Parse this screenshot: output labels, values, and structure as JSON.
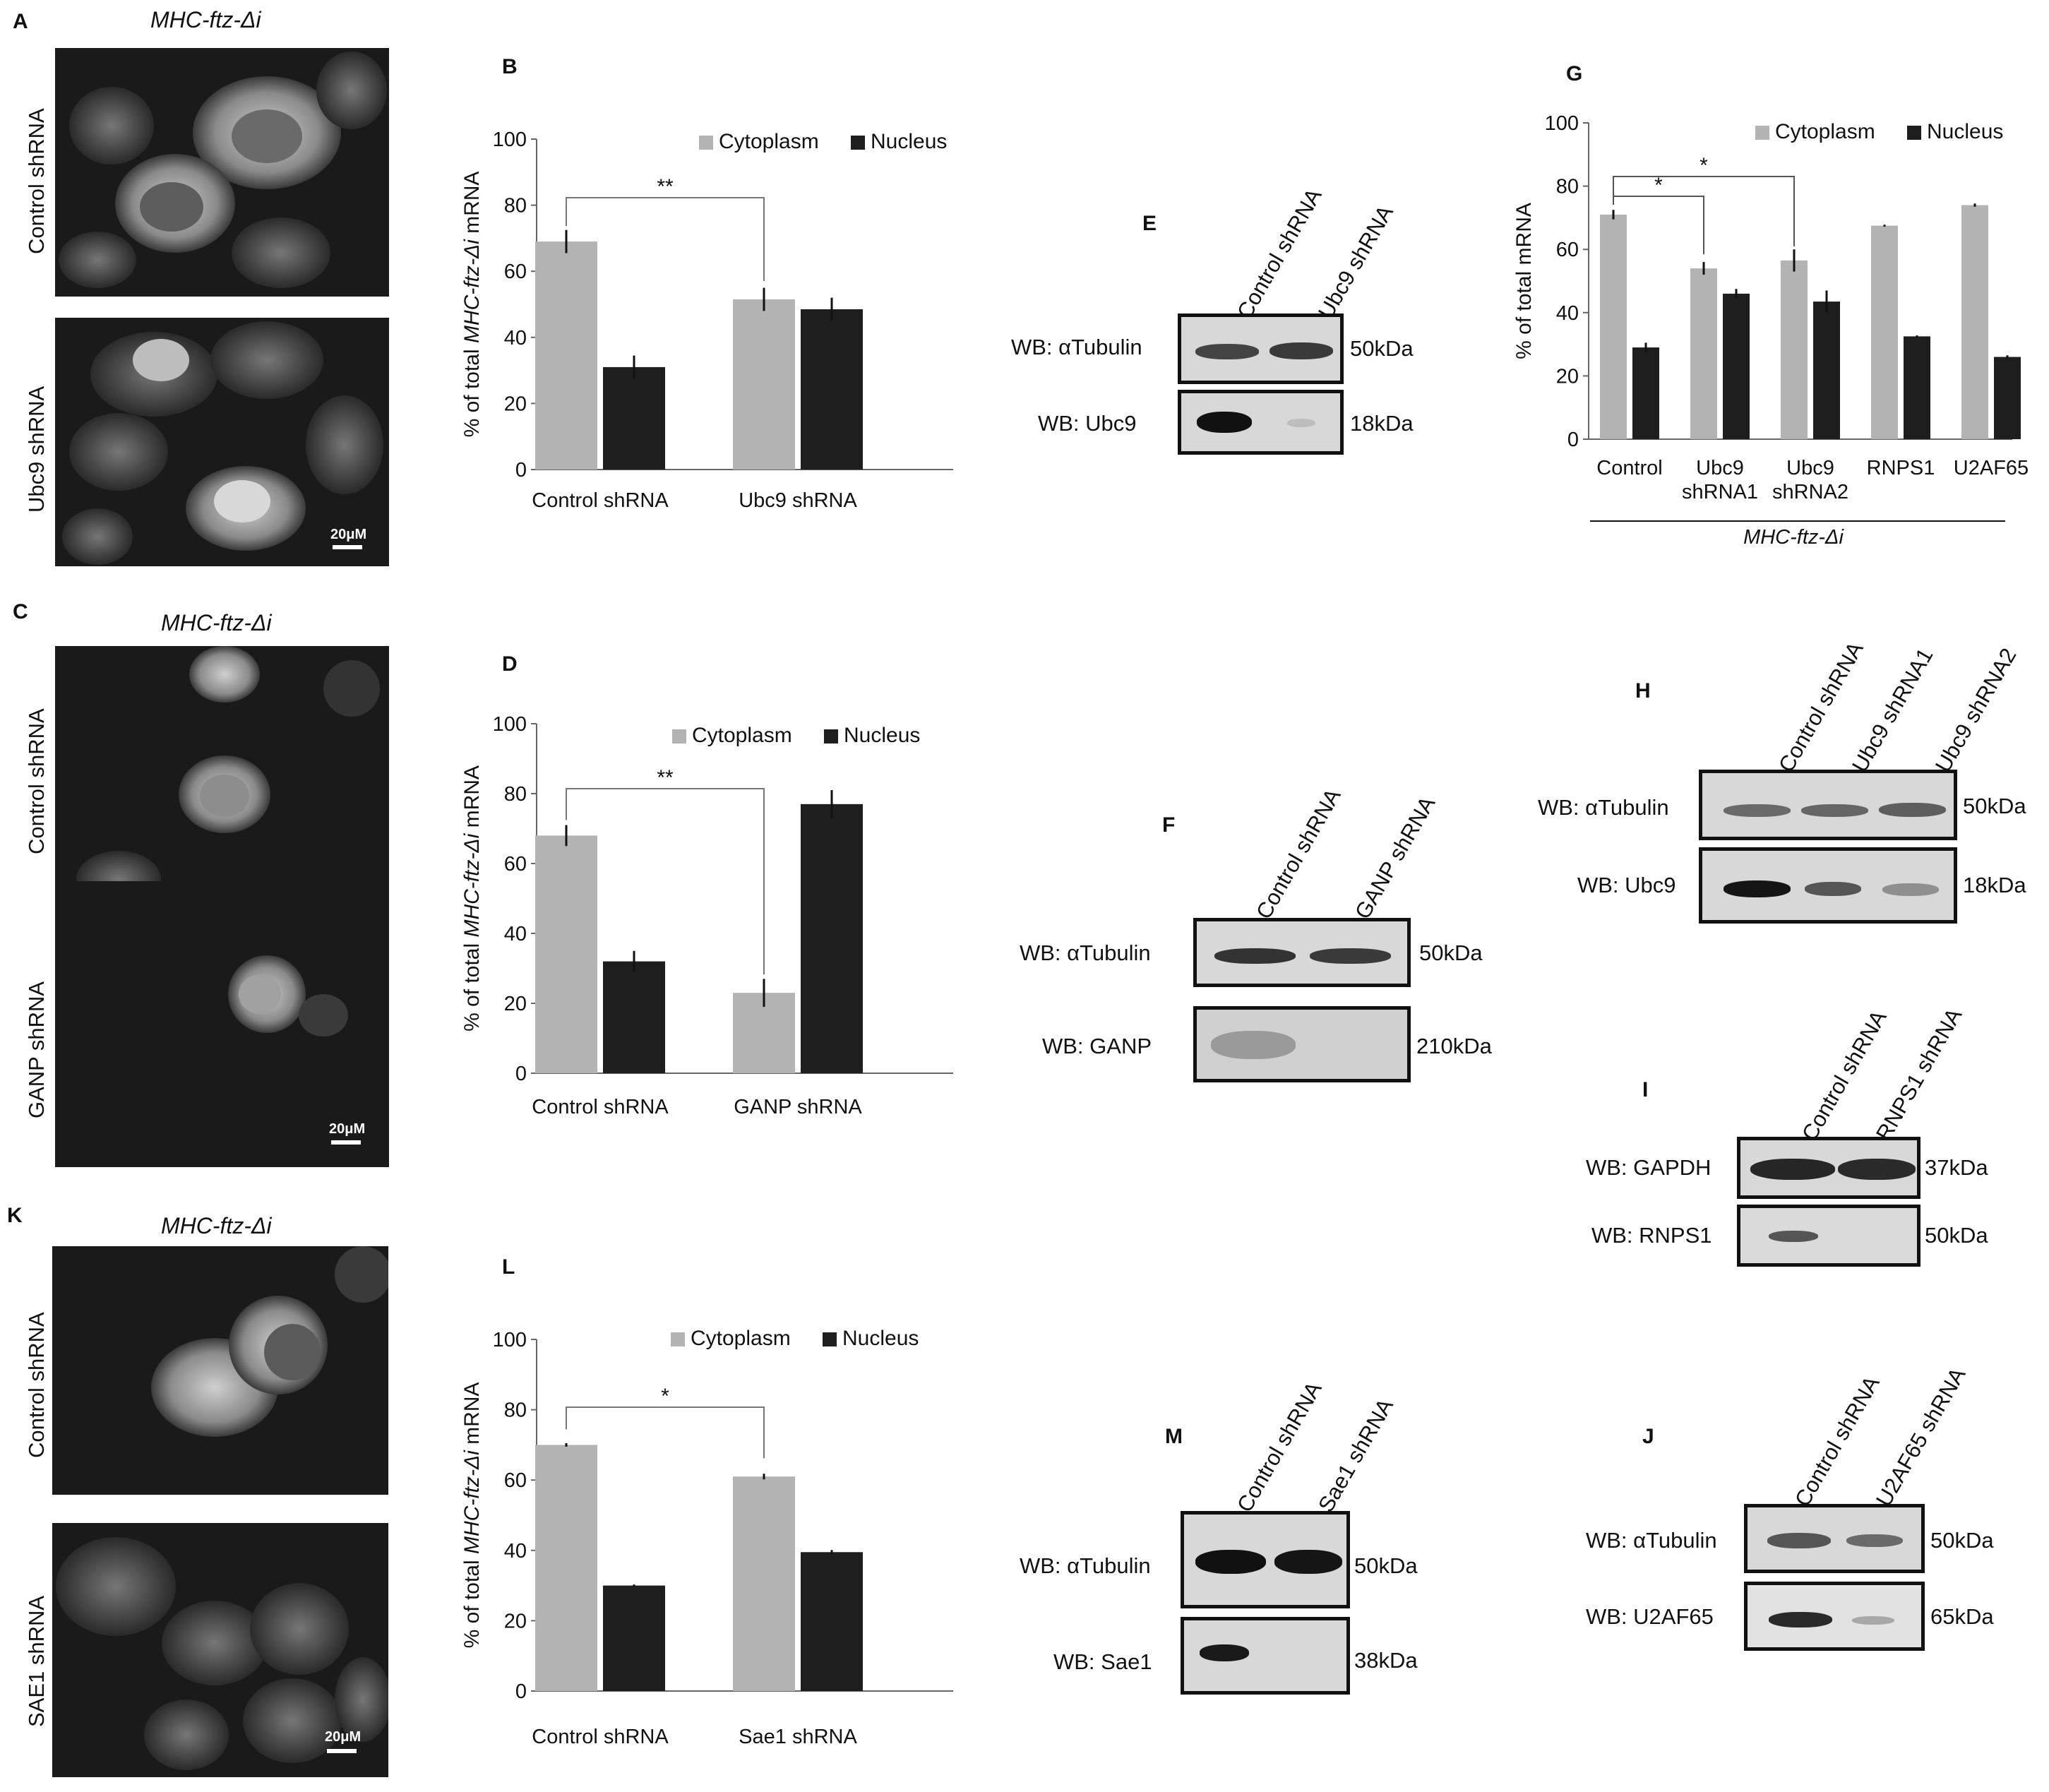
{
  "panels": {
    "A": {
      "letter": "A",
      "title": "MHC-ftz-Δi",
      "top_label": "Control shRNA",
      "bottom_label": "Ubc9 shRNA",
      "scale": "20μM"
    },
    "C": {
      "letter": "C",
      "title": "MHC-ftz-Δi",
      "top_label": "Control shRNA",
      "bottom_label": "GANP shRNA",
      "scale": "20μM"
    },
    "K": {
      "letter": "K",
      "title": "MHC-ftz-Δi",
      "top_label": "Control shRNA",
      "bottom_label": "SAE1 shRNA",
      "scale": "20μM"
    },
    "E": {
      "letter": "E",
      "lanes": [
        "Control shRNA",
        "Ubc9 shRNA"
      ],
      "rows": [
        {
          "label": "WB: αTubulin",
          "kda": "50kDa"
        },
        {
          "label": "WB: Ubc9",
          "kda": "18kDa"
        }
      ]
    },
    "F": {
      "letter": "F",
      "lanes": [
        "Control shRNA",
        "GANP shRNA"
      ],
      "rows": [
        {
          "label": "WB: αTubulin",
          "kda": "50kDa"
        },
        {
          "label": "WB: GANP",
          "kda": "210kDa"
        }
      ]
    },
    "M": {
      "letter": "M",
      "lanes": [
        "Control shRNA",
        "Sae1 shRNA"
      ],
      "rows": [
        {
          "label": "WB: αTubulin",
          "kda": "50kDa"
        },
        {
          "label": "WB: Sae1",
          "kda": "38kDa"
        }
      ]
    },
    "H": {
      "letter": "H",
      "lanes": [
        "Control shRNA",
        "Ubc9 shRNA1",
        "Ubc9 shRNA2"
      ],
      "rows": [
        {
          "label": "WB: αTubulin",
          "kda": "50kDa"
        },
        {
          "label": "WB: Ubc9",
          "kda": "18kDa"
        }
      ]
    },
    "I": {
      "letter": "I",
      "lanes": [
        "Control shRNA",
        "RNPS1 shRNA"
      ],
      "rows": [
        {
          "label": "WB: GAPDH",
          "kda": "37kDa"
        },
        {
          "label": "WB: RNPS1",
          "kda": "50kDa"
        }
      ]
    },
    "J": {
      "letter": "J",
      "lanes": [
        "Control shRNA",
        "U2AF65 shRNA"
      ],
      "rows": [
        {
          "label": "WB: αTubulin",
          "kda": "50kDa"
        },
        {
          "label": "WB: U2AF65",
          "kda": "65kDa"
        }
      ]
    }
  },
  "colors": {
    "cytoplasm": "#b3b3b3",
    "nucleus": "#1e1e1e",
    "axis": "#666666"
  },
  "chart_data": [
    {
      "panel": "B",
      "type": "bar",
      "categories": [
        "Control shRNA",
        "Ubc9 shRNA"
      ],
      "series": [
        {
          "name": "Cytoplasm",
          "values": [
            69,
            51.5
          ],
          "errors": [
            3.5,
            3.5
          ]
        },
        {
          "name": "Nucleus",
          "values": [
            31,
            48.5
          ],
          "errors": [
            3.5,
            3.5
          ]
        }
      ],
      "ylabel_pre": "% of total ",
      "ylabel_italic": "MHC-ftz-Δi",
      "ylabel_post": " mRNA",
      "ylim": [
        0,
        100
      ],
      "yticks": [
        0,
        20,
        40,
        60,
        80,
        100
      ],
      "significance": [
        {
          "from": 0,
          "to": 1,
          "label": "**"
        }
      ],
      "legend": "top-right"
    },
    {
      "panel": "D",
      "type": "bar",
      "categories": [
        "Control shRNA",
        "GANP shRNA"
      ],
      "series": [
        {
          "name": "Cytoplasm",
          "values": [
            68,
            23
          ],
          "errors": [
            3,
            4
          ]
        },
        {
          "name": "Nucleus",
          "values": [
            32,
            77
          ],
          "errors": [
            3,
            4
          ]
        }
      ],
      "ylabel_pre": "% of total ",
      "ylabel_italic": "MHC-ftz-Δi",
      "ylabel_post": " mRNA",
      "ylim": [
        0,
        100
      ],
      "yticks": [
        0,
        20,
        40,
        60,
        80,
        100
      ],
      "significance": [
        {
          "from": 0,
          "to": 1,
          "label": "**"
        }
      ],
      "legend": "top-right"
    },
    {
      "panel": "L",
      "type": "bar",
      "categories": [
        "Control shRNA",
        "Sae1 shRNA"
      ],
      "series": [
        {
          "name": "Cytoplasm",
          "values": [
            70,
            61
          ],
          "errors": [
            0.5,
            0.8
          ]
        },
        {
          "name": "Nucleus",
          "values": [
            30,
            39.5
          ],
          "errors": [
            0.3,
            0.6
          ]
        }
      ],
      "ylabel_pre": "% of total ",
      "ylabel_italic": "MHC-ftz-Δi",
      "ylabel_post": " mRNA",
      "ylim": [
        0,
        100
      ],
      "yticks": [
        0,
        20,
        40,
        60,
        80,
        100
      ],
      "significance": [
        {
          "from": 0,
          "to": 1,
          "label": "*"
        }
      ],
      "legend": "top-right"
    },
    {
      "panel": "G",
      "type": "bar",
      "categories": [
        "Control",
        "Ubc9\nshRNA1",
        "Ubc9\nshRNA2",
        "RNPS1",
        "U2AF65"
      ],
      "series": [
        {
          "name": "Cytoplasm",
          "values": [
            71,
            54,
            56.5,
            67.5,
            74
          ],
          "errors": [
            1.5,
            2,
            3.5,
            0.3,
            0.5
          ]
        },
        {
          "name": "Nucleus",
          "values": [
            29,
            46,
            43.5,
            32.5,
            26
          ],
          "errors": [
            1.5,
            1.5,
            3.5,
            0.3,
            0.5
          ]
        }
      ],
      "ylabel_pre": "% of total mRNA",
      "ylabel_italic": "",
      "ylabel_post": "",
      "ylim": [
        0,
        100
      ],
      "yticks": [
        0,
        20,
        40,
        60,
        80,
        100
      ],
      "significance": [
        {
          "from": 0,
          "to": 1,
          "label": "*"
        },
        {
          "from": 0,
          "to": 2,
          "label": "*"
        }
      ],
      "group_label": "MHC-ftz-Δi",
      "legend": "top-right"
    }
  ]
}
